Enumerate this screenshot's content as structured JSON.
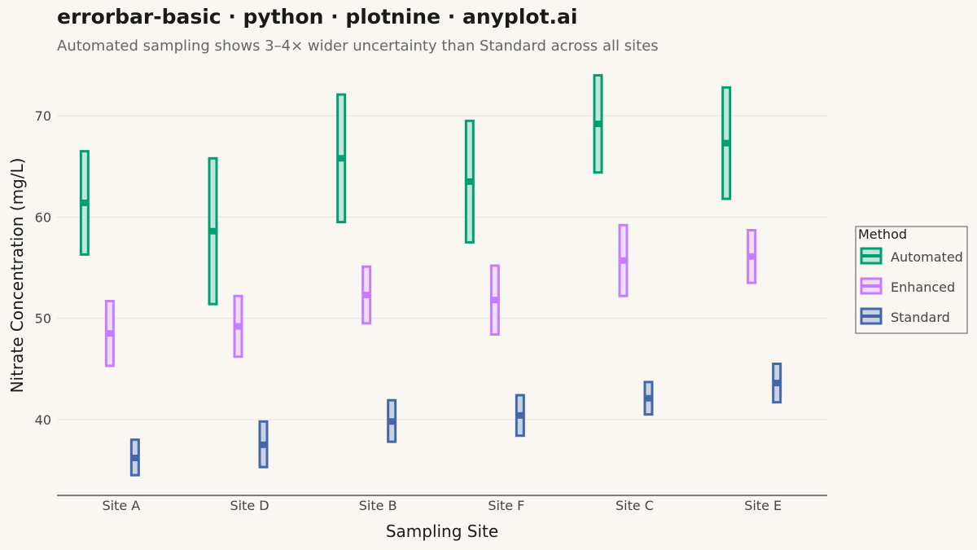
{
  "header": {
    "title": "errorbar-basic · python · plotnine · anyplot.ai",
    "subtitle": "Automated sampling shows 3–4× wider uncertainty than Standard across all sites"
  },
  "chart_data": {
    "type": "errorbar",
    "xlabel": "Sampling Site",
    "ylabel": "Nitrate Concentration (mg/L)",
    "categories": [
      "Site A",
      "Site D",
      "Site B",
      "Site F",
      "Site C",
      "Site E"
    ],
    "ylim": [
      32.5,
      75
    ],
    "yticks": [
      40,
      50,
      60,
      70
    ],
    "grid": true,
    "legend": {
      "title": "Method",
      "position": "right"
    },
    "series": [
      {
        "name": "Automated",
        "color": "#009E73",
        "fill": "#BFE6D9",
        "mean": [
          61.4,
          58.6,
          65.8,
          63.5,
          69.2,
          67.3
        ],
        "lower": [
          56.3,
          51.4,
          59.5,
          57.5,
          64.4,
          61.8
        ],
        "upper": [
          66.5,
          65.8,
          72.1,
          69.5,
          74.0,
          72.8
        ]
      },
      {
        "name": "Enhanced",
        "color": "#C77DFF",
        "fill": "#EFDCFB",
        "mean": [
          48.5,
          49.2,
          52.3,
          51.8,
          55.7,
          56.1
        ],
        "lower": [
          45.3,
          46.2,
          49.5,
          48.4,
          52.2,
          53.5
        ],
        "upper": [
          51.7,
          52.2,
          55.1,
          55.2,
          59.2,
          58.7
        ]
      },
      {
        "name": "Standard",
        "color": "#4467A8",
        "fill": "#C9D2E4",
        "mean": [
          36.2,
          37.5,
          39.8,
          40.4,
          42.1,
          43.6
        ],
        "lower": [
          34.5,
          35.3,
          37.8,
          38.4,
          40.5,
          41.7
        ],
        "upper": [
          38.0,
          39.8,
          41.9,
          42.4,
          43.7,
          45.5
        ]
      }
    ]
  }
}
